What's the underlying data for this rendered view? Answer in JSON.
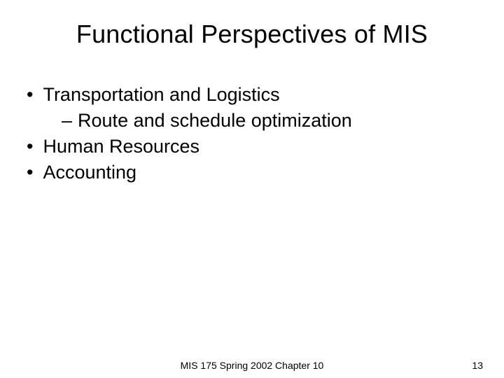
{
  "slide": {
    "title": "Functional Perspectives of MIS",
    "bullets": [
      {
        "text": "Transportation and Logistics",
        "type": "main"
      },
      {
        "text": "Route and schedule optimization",
        "type": "sub"
      },
      {
        "text": "Human Resources",
        "type": "main"
      },
      {
        "text": "Accounting",
        "type": "main"
      }
    ],
    "footer_text": "MIS 175 Spring 2002 Chapter 10",
    "page_number": "13"
  },
  "styling": {
    "background_color": "#ffffff",
    "text_color": "#000000",
    "title_fontsize": 36,
    "body_fontsize": 27,
    "footer_fontsize": 14,
    "font_family": "Arial"
  }
}
